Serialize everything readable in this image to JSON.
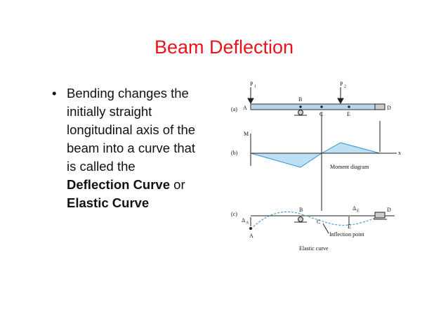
{
  "slide": {
    "title": "Beam Deflection",
    "bullet": {
      "lines": [
        "Bending changes the",
        "initially straight",
        "longitudinal axis of the",
        "beam into a curve that",
        "is called the"
      ],
      "emphasis": [
        "Deflection Curve",
        "Elastic Curve"
      ],
      "connector": "or"
    },
    "figure": {
      "part_a": {
        "label": "(a)",
        "loads": [
          {
            "name": "P",
            "sub": "1"
          },
          {
            "name": "P",
            "sub": "2"
          }
        ],
        "points": [
          "A",
          "B",
          "C",
          "E",
          "D"
        ]
      },
      "part_b": {
        "label": "(b)",
        "axis_y": "M",
        "axis_x": "x",
        "caption": "Moment diagram"
      },
      "part_c": {
        "label": "(c)",
        "delta_a": {
          "name": "Δ",
          "sub": "A"
        },
        "delta_e": {
          "name": "Δ",
          "sub": "E"
        },
        "points": [
          "A",
          "B",
          "C",
          "E",
          "D"
        ],
        "note": "Inflection point",
        "caption": "Elastic curve"
      }
    }
  }
}
